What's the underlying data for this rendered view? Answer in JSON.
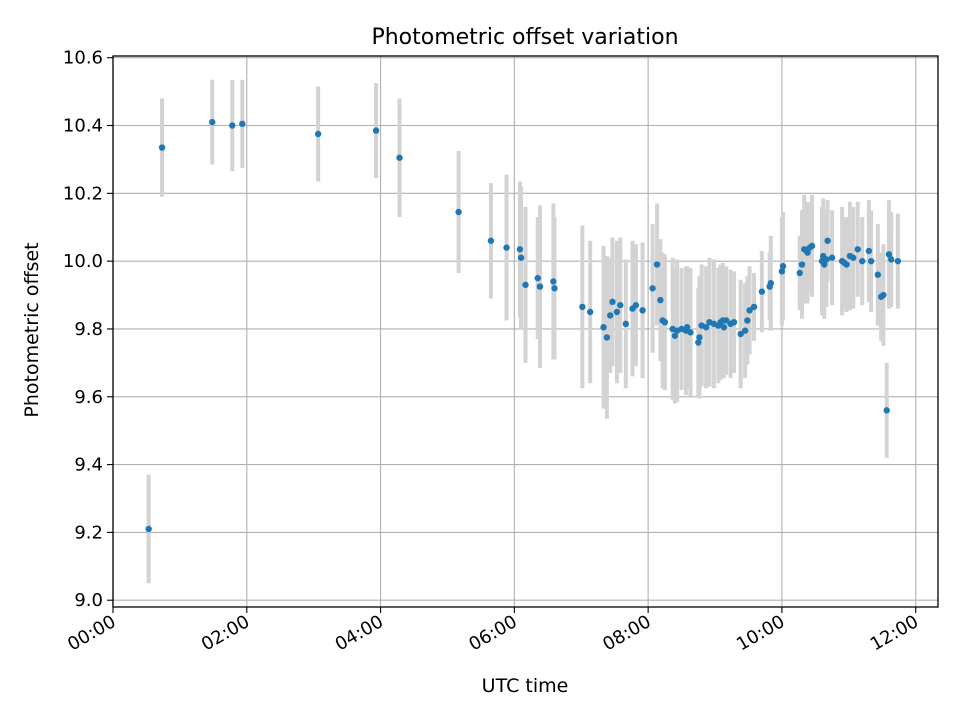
{
  "chart_data": {
    "type": "scatter",
    "title": "Photometric offset variation",
    "xlabel": "UTC time",
    "ylabel": "Photometric offset",
    "xlim": [
      "00:00",
      "12:20"
    ],
    "ylim": [
      8.98,
      10.605
    ],
    "grid": true,
    "x_ticks": [
      "00:00",
      "02:00",
      "04:00",
      "06:00",
      "08:00",
      "10:00",
      "12:00"
    ],
    "y_ticks": [
      "9.0",
      "9.2",
      "9.4",
      "9.6",
      "9.8",
      "10.0",
      "10.2",
      "10.4",
      "10.6"
    ],
    "point_color": "#1f77b4",
    "errorbar_color": "#d3d3d3",
    "series": [
      {
        "x": [
          "00:32",
          "00:44",
          "01:29",
          "01:47",
          "01:56",
          "03:04",
          "03:56",
          "04:17",
          "05:10",
          "05:39",
          "05:53",
          "06:05",
          "06:06",
          "06:10",
          "06:21",
          "06:23",
          "06:35",
          "06:36",
          "07:01",
          "07:08",
          "07:20",
          "07:23",
          "07:26",
          "07:28",
          "07:32",
          "07:35",
          "07:40",
          "07:46",
          "07:49",
          "07:55",
          "08:04",
          "08:08",
          "08:11",
          "08:13",
          "08:15",
          "08:22",
          "08:24",
          "08:26",
          "08:30",
          "08:34",
          "08:35",
          "08:38",
          "08:45",
          "08:46",
          "08:48",
          "08:52",
          "08:55",
          "08:59",
          "09:03",
          "09:05",
          "09:07",
          "09:08",
          "09:10",
          "09:14",
          "09:17",
          "09:23",
          "09:27",
          "09:29",
          "09:31",
          "09:35",
          "09:42",
          "09:49",
          "09:50",
          "10:00",
          "10:01",
          "10:16",
          "10:18",
          "10:20",
          "10:23",
          "10:25",
          "10:27",
          "10:36",
          "10:37",
          "10:38",
          "10:40",
          "10:41",
          "10:45",
          "10:54",
          "10:56",
          "10:58",
          "11:01",
          "11:04",
          "11:08",
          "11:12",
          "11:18",
          "11:20",
          "11:26",
          "11:29",
          "11:31",
          "11:34",
          "11:36",
          "11:38",
          "11:44"
        ],
        "y": [
          9.21,
          10.335,
          10.41,
          10.4,
          10.405,
          10.375,
          10.385,
          10.305,
          10.145,
          10.06,
          10.04,
          10.035,
          10.01,
          9.93,
          9.95,
          9.925,
          9.94,
          9.92,
          9.865,
          9.85,
          9.805,
          9.775,
          9.84,
          9.88,
          9.85,
          9.87,
          9.815,
          9.86,
          9.87,
          9.855,
          9.92,
          9.99,
          9.885,
          9.825,
          9.82,
          9.8,
          9.78,
          9.795,
          9.8,
          9.795,
          9.805,
          9.79,
          9.76,
          9.775,
          9.81,
          9.805,
          9.82,
          9.815,
          9.81,
          9.82,
          9.825,
          9.805,
          9.825,
          9.815,
          9.82,
          9.785,
          9.795,
          9.825,
          9.855,
          9.865,
          9.91,
          9.925,
          9.935,
          9.97,
          9.985,
          9.965,
          9.99,
          10.035,
          10.025,
          10.04,
          10.045,
          10.0,
          10.015,
          9.99,
          10.005,
          10.06,
          10.01,
          10.0,
          9.995,
          9.99,
          10.015,
          10.01,
          10.035,
          10.0,
          10.03,
          10.0,
          9.96,
          9.895,
          9.9,
          9.56,
          10.02,
          10.005,
          10.0
        ],
        "err": [
          0.16,
          0.145,
          0.125,
          0.135,
          0.13,
          0.14,
          0.14,
          0.175,
          0.18,
          0.17,
          0.215,
          0.2,
          0.21,
          0.23,
          0.18,
          0.24,
          0.23,
          0.21,
          0.24,
          0.21,
          0.24,
          0.24,
          0.17,
          0.19,
          0.21,
          0.2,
          0.19,
          0.2,
          0.18,
          0.2,
          0.19,
          0.18,
          0.18,
          0.2,
          0.2,
          0.21,
          0.2,
          0.21,
          0.18,
          0.19,
          0.18,
          0.19,
          0.16,
          0.18,
          0.18,
          0.18,
          0.19,
          0.19,
          0.17,
          0.17,
          0.17,
          0.15,
          0.16,
          0.16,
          0.15,
          0.16,
          0.14,
          0.13,
          0.13,
          0.1,
          0.12,
          0.1,
          0.14,
          0.16,
          0.16,
          0.11,
          0.16,
          0.16,
          0.15,
          0.13,
          0.15,
          0.16,
          0.17,
          0.16,
          0.14,
          0.12,
          0.14,
          0.16,
          0.13,
          0.14,
          0.16,
          0.15,
          0.14,
          0.13,
          0.15,
          0.15,
          0.15,
          0.13,
          0.15,
          0.14,
          0.16,
          0.14,
          0.14
        ]
      }
    ]
  }
}
